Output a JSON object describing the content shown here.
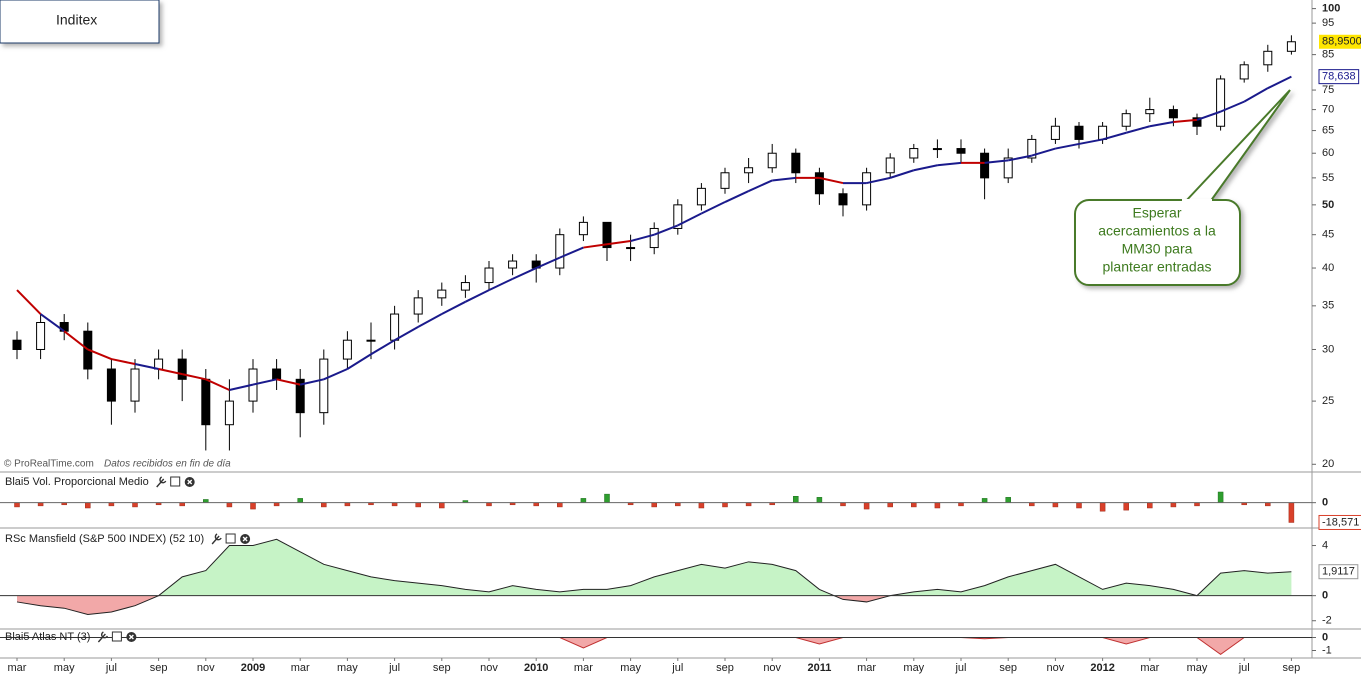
{
  "chart_data": [
    {
      "type": "candlestick",
      "title": "Inditex",
      "categories": [
        "mar",
        null,
        "may",
        null,
        "jul",
        null,
        "sep",
        null,
        "nov",
        null,
        "2009",
        null,
        "mar",
        null,
        "may",
        null,
        "jul",
        null,
        "sep",
        null,
        "nov",
        null,
        "2010",
        null,
        "mar",
        null,
        "may",
        null,
        "jul",
        null,
        "sep",
        null,
        "nov",
        null,
        "2011",
        null,
        "mar",
        null,
        "may",
        null,
        "jul",
        null,
        "sep",
        null,
        "nov",
        null,
        "2012",
        null,
        "mar",
        null,
        "may",
        null,
        "jul",
        null,
        "sep"
      ],
      "open": [
        31,
        30,
        33,
        32,
        28,
        25,
        28,
        29,
        27,
        23,
        25,
        28,
        27,
        24,
        29,
        31,
        31,
        34,
        36,
        37,
        38,
        40,
        41,
        40,
        45,
        47,
        43,
        43,
        46,
        50,
        53,
        56,
        57,
        60,
        56,
        52,
        50,
        56,
        59,
        61,
        61,
        60,
        55,
        59,
        63,
        66,
        63,
        66,
        69,
        70,
        68,
        66,
        78,
        82,
        86
      ],
      "high": [
        32,
        34,
        34,
        33,
        29,
        29,
        30,
        30,
        28,
        27,
        29,
        29,
        28,
        30,
        32,
        33,
        35,
        37,
        38,
        39,
        41,
        42,
        42,
        46,
        48,
        47,
        45,
        47,
        51,
        54,
        57,
        59,
        62,
        61,
        57,
        53,
        57,
        60,
        62,
        63,
        63,
        61,
        61,
        64,
        68,
        67,
        67,
        70,
        73,
        71,
        69,
        79,
        83,
        88,
        91
      ],
      "low": [
        29,
        29,
        31,
        27,
        23,
        24,
        27,
        25,
        21,
        21,
        24,
        26,
        22,
        23,
        28,
        29,
        30,
        33,
        35,
        36,
        37,
        39,
        38,
        39,
        44,
        41,
        41,
        42,
        45,
        49,
        52,
        54,
        56,
        54,
        50,
        48,
        49,
        55,
        58,
        59,
        58,
        51,
        54,
        58,
        62,
        61,
        62,
        65,
        67,
        66,
        64,
        65,
        77,
        80,
        85
      ],
      "close": [
        30,
        33,
        32,
        28,
        25,
        28,
        29,
        27,
        23,
        25,
        28,
        27,
        24,
        29,
        31,
        31,
        34,
        36,
        37,
        38,
        40,
        41,
        40,
        45,
        47,
        43,
        43,
        46,
        50,
        53,
        56,
        57,
        60,
        56,
        52,
        50,
        56,
        59,
        61,
        61,
        60,
        55,
        59,
        63,
        66,
        63,
        66,
        69,
        70,
        68,
        66,
        78,
        82,
        86,
        88.95
      ],
      "last_label": "88,9500",
      "up_color": "#ffffff",
      "down_color": "#000000",
      "moving_average": {
        "values": [
          37,
          34,
          32,
          30,
          29,
          28.5,
          28,
          27.5,
          27,
          26,
          26.5,
          27,
          26.5,
          27,
          28,
          29.5,
          31,
          32.5,
          34,
          35.5,
          37,
          38.5,
          40,
          41.5,
          43,
          43.5,
          44,
          45,
          46.5,
          48.5,
          50.5,
          52.5,
          54.5,
          55,
          55,
          54,
          54,
          55,
          56.5,
          57.5,
          58,
          58,
          58.5,
          59.5,
          61,
          62,
          63,
          64.5,
          66,
          67,
          67.5,
          69.5,
          72,
          75.5,
          78.638
        ],
        "color_above": "#1a1a8c",
        "color_below": "#c00000",
        "last_label": "78,638"
      },
      "ylim": [
        19.6,
        102
      ],
      "log_scale": true,
      "yticks": [
        100,
        95,
        85,
        75,
        70,
        65,
        60,
        55,
        50,
        45,
        40,
        35,
        30,
        25,
        20
      ],
      "source": "© ProRealTime.com",
      "note": "Datos recibidos en fin de día",
      "annotation": [
        "Esperar",
        "acercamientos a la",
        "MM30 para",
        "plantear entradas"
      ]
    },
    {
      "type": "bar",
      "title": "Blai5 Vol. Proporcional Medio",
      "values": [
        -4,
        -3,
        -2,
        -5,
        -3,
        -4,
        -2,
        -3,
        3,
        -4,
        -6,
        -3,
        4,
        -4,
        -3,
        -2,
        -3,
        -4,
        -5,
        2,
        -3,
        -2,
        -3,
        -4,
        4,
        8,
        -2,
        -4,
        -3,
        -5,
        -4,
        -3,
        -2,
        6,
        5,
        -3,
        -6,
        -4,
        -4,
        -5,
        -3,
        4,
        5,
        -3,
        -4,
        -5,
        -8,
        -7,
        -5,
        -4,
        -3,
        10,
        -2,
        -3,
        -18.571
      ],
      "last_label": "-18,571",
      "positive_color": "#2e9e2e",
      "negative_color": "#d9402a",
      "ylim": [
        -20,
        25
      ],
      "yticks": [
        0
      ]
    },
    {
      "type": "area",
      "title": "RSc Mansfield (S&P 500 INDEX) (52 10)",
      "values": [
        -0.5,
        -0.8,
        -1,
        -1.5,
        -1.3,
        -0.8,
        0,
        1.5,
        2,
        4,
        4,
        4.5,
        3.5,
        2.5,
        2,
        1.5,
        1.2,
        1,
        0.8,
        0.5,
        0.3,
        0.8,
        0.5,
        0.3,
        0.5,
        0.5,
        0.8,
        1.5,
        2,
        2.5,
        2.2,
        2.7,
        2.5,
        2,
        0.5,
        -0.3,
        -0.5,
        0,
        0.3,
        0.5,
        0.3,
        0.8,
        1.5,
        2,
        2.5,
        1.5,
        0.5,
        1,
        0.8,
        0.5,
        0,
        1.8,
        2,
        1.8,
        1.9117
      ],
      "last_label": "1,9117",
      "positive_color": "#c6f3c6",
      "negative_color": "#f2a8a8",
      "ylim": [
        -2.5,
        5
      ],
      "yticks": [
        4,
        0,
        -2
      ]
    },
    {
      "type": "area",
      "title": "Blai5 Atlas NT (3)",
      "values": [
        0,
        0,
        0,
        0,
        0,
        0,
        0,
        0,
        0,
        0,
        0,
        0,
        0,
        0,
        0,
        0,
        0,
        0,
        0,
        0,
        0,
        0,
        0,
        0,
        -0.8,
        0,
        0,
        0,
        0,
        0,
        0,
        0,
        0,
        0,
        -0.5,
        0,
        0,
        0,
        0,
        0,
        0,
        -0.1,
        0,
        0,
        0,
        0,
        0,
        -0.5,
        0,
        0,
        0,
        -1.3,
        0,
        0,
        0
      ],
      "positive_color": "#c6f3c6",
      "negative_color": "#f2a8a8",
      "ylim": [
        -1.5,
        0.5
      ],
      "yticks": [
        0,
        -1
      ]
    }
  ]
}
